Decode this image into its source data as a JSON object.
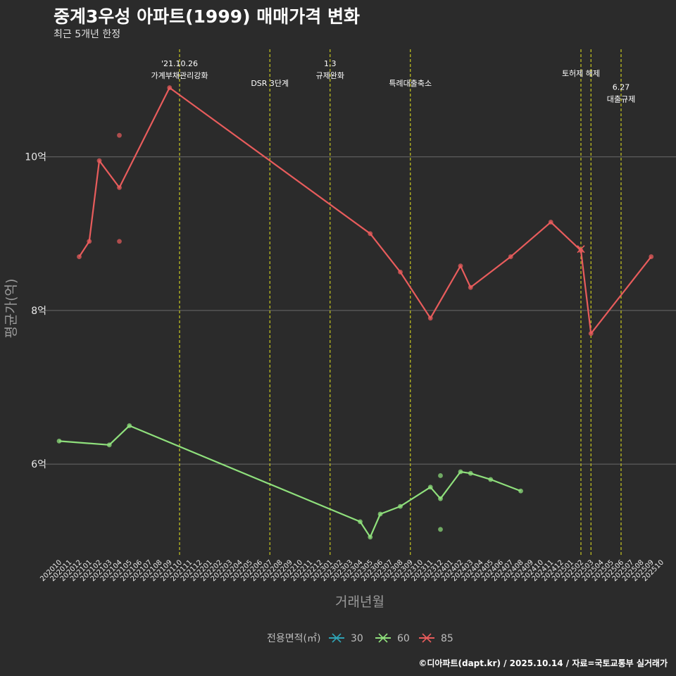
{
  "header": {
    "title": "중계3우성 아파트(1999) 매매가격 변화",
    "subtitle": "최근 5개년 한정"
  },
  "footer": {
    "credit": "©디아파트(dapt.kr) / 2025.10.14 / 자료=국토교통부 실거래가"
  },
  "colors": {
    "background": "#2b2b2b",
    "grid": "#6a6a6a",
    "vline": "#c8c820",
    "s30": "#2fa3b5",
    "s60": "#8fe07c",
    "s85": "#e85c5c"
  },
  "chart_data": {
    "type": "line",
    "title": "중계3우성 아파트(1999) 매매가격 변화",
    "xlabel": "거래년월",
    "ylabel": "평균가(억)",
    "ylim": [
      4.8,
      11.4
    ],
    "yticks": [
      {
        "value": 6,
        "label": "6억"
      },
      {
        "value": 8,
        "label": "8억"
      },
      {
        "value": 10,
        "label": "10억"
      }
    ],
    "x_categories": [
      "202010",
      "202011",
      "202012",
      "202101",
      "202102",
      "202103",
      "202104",
      "202105",
      "202106",
      "202107",
      "202108",
      "202109",
      "202110",
      "202111",
      "202112",
      "202201",
      "202202",
      "202203",
      "202204",
      "202205",
      "202206",
      "202207",
      "202208",
      "202209",
      "202210",
      "202211",
      "202212",
      "202301",
      "202302",
      "202303",
      "202304",
      "202305",
      "202306",
      "202307",
      "202308",
      "202309",
      "202310",
      "202311",
      "202312",
      "202401",
      "202402",
      "202403",
      "202404",
      "202405",
      "202406",
      "202407",
      "202408",
      "202409",
      "202410",
      "202411",
      "202412",
      "202501",
      "202502",
      "202503",
      "202504",
      "202505",
      "202506",
      "202507",
      "202508",
      "202509",
      "202510"
    ],
    "legend": {
      "title": "전용면적(㎡)",
      "entries": [
        {
          "key": "s30",
          "label": "30"
        },
        {
          "key": "s60",
          "label": "60"
        },
        {
          "key": "s85",
          "label": "85"
        }
      ]
    },
    "series": [
      {
        "key": "s60",
        "name": "60",
        "line": [
          [
            "202010",
            6.3
          ],
          [
            "202103",
            6.25
          ],
          [
            "202105",
            6.5
          ],
          [
            "202304",
            5.25
          ],
          [
            "202305",
            5.05
          ],
          [
            "202306",
            5.35
          ],
          [
            "202308",
            5.45
          ],
          [
            "202311",
            5.7
          ],
          [
            "202312",
            5.55
          ],
          [
            "202402",
            5.9
          ],
          [
            "202403",
            5.88
          ],
          [
            "202405",
            5.8
          ],
          [
            "202408",
            5.65
          ]
        ],
        "extra_points": [
          [
            "202312",
            5.85
          ],
          [
            "202312",
            5.15
          ]
        ]
      },
      {
        "key": "s85",
        "name": "85",
        "line": [
          [
            "202012",
            8.7
          ],
          [
            "202101",
            8.9
          ],
          [
            "202102",
            9.95
          ],
          [
            "202104",
            9.6
          ],
          [
            "202109",
            10.9
          ],
          [
            "202305",
            9.0
          ],
          [
            "202308",
            8.5
          ],
          [
            "202311",
            7.9
          ],
          [
            "202402",
            8.58
          ],
          [
            "202403",
            8.3
          ],
          [
            "202407",
            8.7
          ],
          [
            "202411",
            9.15
          ],
          [
            "202502",
            8.78
          ],
          [
            "202503",
            7.7
          ],
          [
            "202509",
            8.7
          ]
        ],
        "extra_points": [
          [
            "202104",
            10.28
          ],
          [
            "202104",
            8.9
          ]
        ],
        "cross_points": [
          [
            "202502",
            8.8
          ]
        ]
      }
    ],
    "vlines": [
      {
        "x": "202110",
        "lines": [
          "'21.10.26",
          "가계부채관리강화"
        ],
        "row": 1
      },
      {
        "x": "202207",
        "lines": [
          "DSR 3단계"
        ],
        "row": 2
      },
      {
        "x": "202301",
        "lines": [
          "1.3",
          "규제완화"
        ],
        "row": 1
      },
      {
        "x": "202309",
        "lines": [
          "특례대출축소"
        ],
        "row": 2
      },
      {
        "x": "202502",
        "lines": [
          "토허제 해제"
        ],
        "row": 1.5
      },
      {
        "x": "202503",
        "lines": [],
        "row": 1
      },
      {
        "x": "202506",
        "lines": [
          "6.27",
          "대출규제"
        ],
        "row": 2.2
      }
    ]
  }
}
